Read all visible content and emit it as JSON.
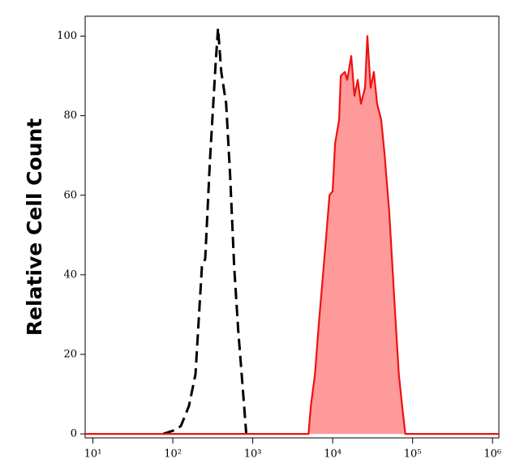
{
  "chart_data": {
    "type": "histogram-overlay",
    "y_label": "Relative Cell Count",
    "xscale": "log",
    "xlim": [
      8,
      1200000
    ],
    "ylim": [
      -1,
      105
    ],
    "xticks": [
      {
        "value": 10,
        "label": "10¹"
      },
      {
        "value": 100,
        "label": "10²"
      },
      {
        "value": 1000,
        "label": "10³"
      },
      {
        "value": 10000,
        "label": "10⁴"
      },
      {
        "value": 100000,
        "label": "10⁵"
      },
      {
        "value": 1000000,
        "label": "10⁶"
      }
    ],
    "yticks": [
      0,
      20,
      40,
      60,
      80,
      100
    ],
    "series": [
      {
        "color": "#000000",
        "dash": true,
        "fill": null,
        "x": [
          76,
          107,
          126,
          159,
          192,
          231,
          254,
          292,
          343,
          368,
          404,
          464,
          521,
          586,
          658,
          739,
          830
        ],
        "values": [
          0,
          1,
          2,
          7,
          15,
          42,
          44,
          69,
          93,
          102,
          91,
          83,
          65,
          42,
          26,
          13,
          0
        ]
      },
      {
        "color": "#ee1111",
        "dash": false,
        "fill": "#ff9a9a",
        "x": [
          8,
          4977,
          5334,
          5998,
          6730,
          7570,
          8493,
          9120,
          10000,
          10720,
          12050,
          12620,
          14180,
          15210,
          17070,
          18750,
          20560,
          22590,
          25360,
          27180,
          29850,
          32750,
          35940,
          40370,
          44300,
          50920,
          55860,
          61350,
          67320,
          73960,
          81100,
          1200000
        ],
        "values": [
          0,
          0,
          7,
          15,
          28,
          40,
          52,
          60,
          61,
          73,
          79,
          90,
          91,
          89,
          95,
          85,
          89,
          83,
          87,
          100,
          87,
          91,
          83,
          79,
          71,
          56,
          42,
          28,
          15,
          7,
          0,
          0
        ]
      }
    ]
  }
}
